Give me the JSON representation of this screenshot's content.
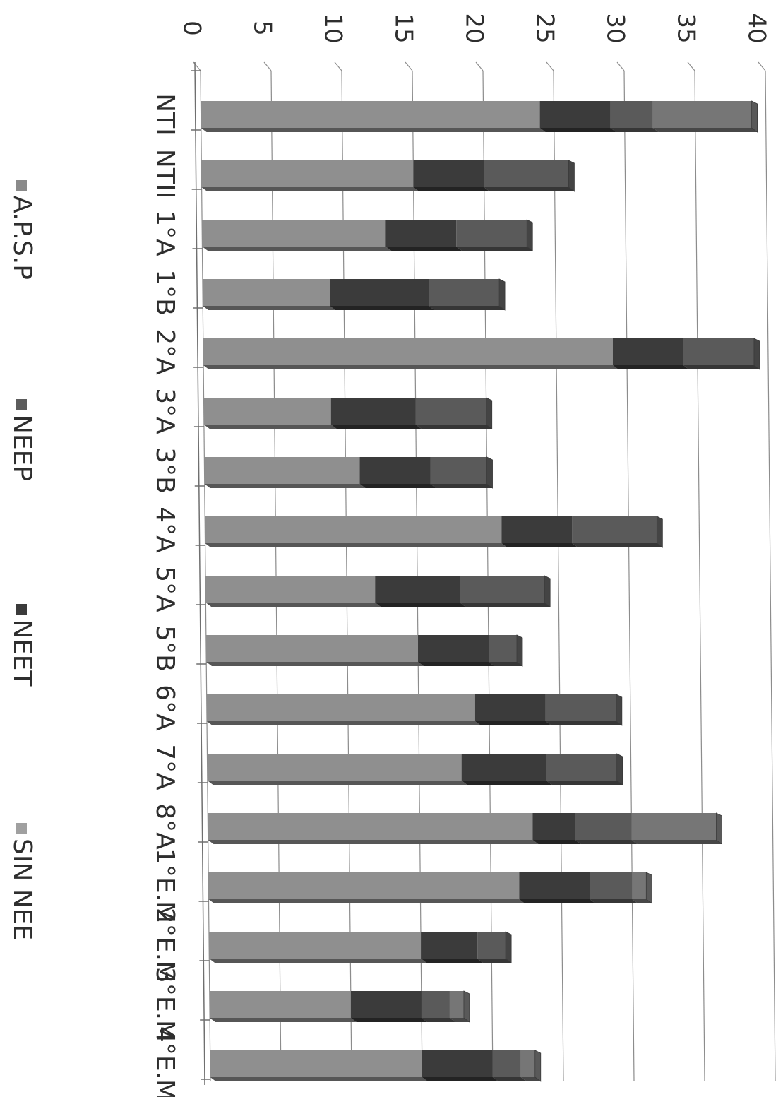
{
  "chart_data": {
    "type": "bar",
    "orientation": "horizontal",
    "stacked": true,
    "three_d": true,
    "title": "",
    "xlabel": "",
    "ylabel": "",
    "xlim": [
      0,
      40
    ],
    "x_ticks": [
      0,
      5,
      10,
      15,
      20,
      25,
      30,
      35,
      40
    ],
    "grid": true,
    "legend_position": "bottom",
    "categories": [
      "NTI",
      "NTII",
      "1°A",
      "1°B",
      "2°A",
      "3°A",
      "3°B",
      "4°A",
      "5°A",
      "5°B",
      "6°A",
      "7°A",
      "8°A",
      "1°E.M",
      "2°E.M",
      "3°E.M",
      "4°E.M"
    ],
    "series": [
      {
        "name": "SIN NEE",
        "color": "#8f8f8f",
        "values": [
          24,
          15,
          13,
          9,
          29,
          9,
          11,
          21,
          12,
          15,
          19,
          18,
          23,
          22,
          15,
          10,
          15
        ]
      },
      {
        "name": "NEET",
        "color": "#3b3b3b",
        "values": [
          5,
          5,
          5,
          7,
          5,
          6,
          5,
          5,
          6,
          5,
          5,
          6,
          3,
          5,
          4,
          5,
          5
        ]
      },
      {
        "name": "NEEP",
        "color": "#5a5a5a",
        "values": [
          3,
          6,
          5,
          5,
          5,
          5,
          4,
          6,
          6,
          2,
          5,
          5,
          4,
          3,
          2,
          2,
          2
        ]
      },
      {
        "name": "A.P.S.P",
        "color": "#767676",
        "values": [
          7,
          0,
          0,
          0,
          0,
          0,
          0,
          0,
          0,
          0,
          0,
          0,
          6,
          1,
          0,
          1,
          1
        ]
      }
    ],
    "legend": [
      "A.P.S.P",
      "NEEP",
      "NEET",
      "SIN NEE"
    ],
    "legend_colors": [
      "#8a8a8a",
      "#5c5c5c",
      "#3b3b3b",
      "#a0a0a0"
    ]
  }
}
